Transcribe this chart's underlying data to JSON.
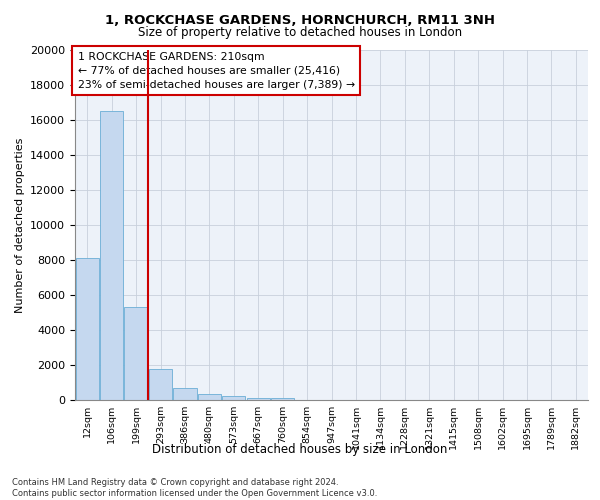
{
  "title": "1, ROCKCHASE GARDENS, HORNCHURCH, RM11 3NH",
  "subtitle": "Size of property relative to detached houses in London",
  "xlabel": "Distribution of detached houses by size in London",
  "ylabel": "Number of detached properties",
  "bar_color": "#c5d8ef",
  "bar_edge_color": "#6baed6",
  "annotation_box_text": "1 ROCKCHASE GARDENS: 210sqm\n← 77% of detached houses are smaller (25,416)\n23% of semi-detached houses are larger (7,389) →",
  "annotation_box_color": "#ffffff",
  "annotation_box_edge_color": "#cc0000",
  "vline_bin_index": 2,
  "vline_color": "#cc0000",
  "footnote": "Contains HM Land Registry data © Crown copyright and database right 2024.\nContains public sector information licensed under the Open Government Licence v3.0.",
  "bin_labels": [
    "12sqm",
    "106sqm",
    "199sqm",
    "293sqm",
    "386sqm",
    "480sqm",
    "573sqm",
    "667sqm",
    "760sqm",
    "854sqm",
    "947sqm",
    "1041sqm",
    "1134sqm",
    "1228sqm",
    "1321sqm",
    "1415sqm",
    "1508sqm",
    "1602sqm",
    "1695sqm",
    "1789sqm",
    "1882sqm"
  ],
  "values": [
    8100,
    16500,
    5300,
    1750,
    700,
    350,
    210,
    140,
    110,
    0,
    0,
    0,
    0,
    0,
    0,
    0,
    0,
    0,
    0,
    0
  ],
  "ylim": [
    0,
    20000
  ],
  "yticks": [
    0,
    2000,
    4000,
    6000,
    8000,
    10000,
    12000,
    14000,
    16000,
    18000,
    20000
  ],
  "background_color": "#edf2f9",
  "grid_color": "#c8d0dc"
}
